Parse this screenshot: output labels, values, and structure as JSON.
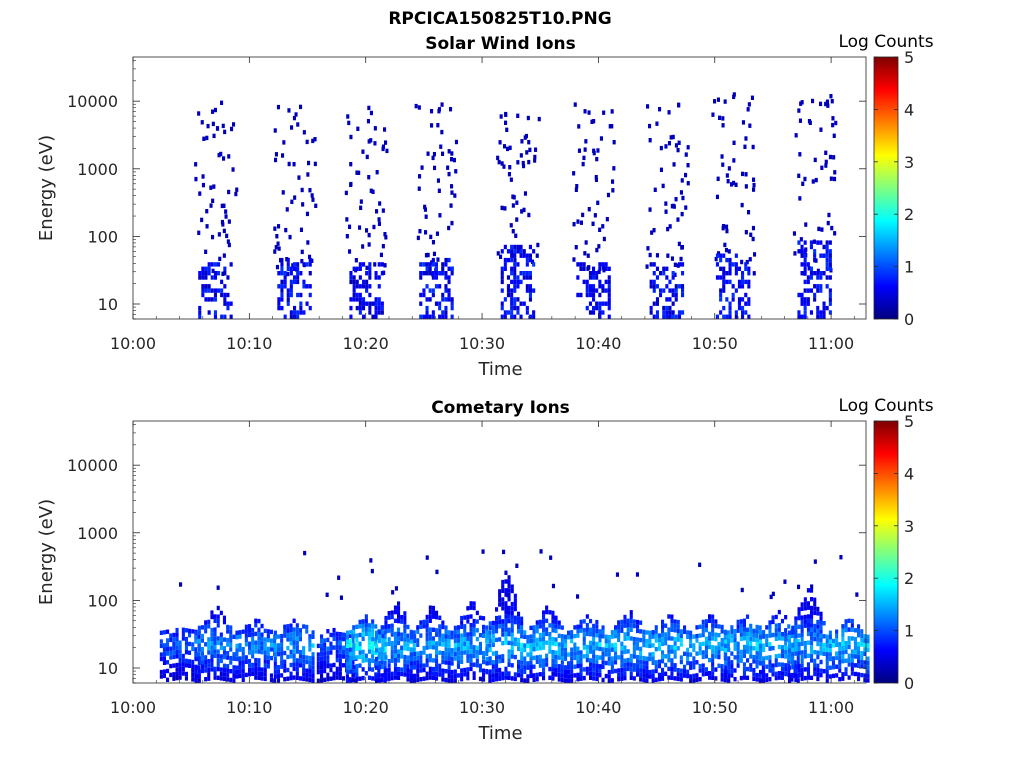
{
  "page": {
    "title": "RPCICA150825T10.PNG"
  },
  "colormap": [
    "#00007f",
    "#0000ff",
    "#007fff",
    "#00ffff",
    "#7fff7f",
    "#ffff00",
    "#ff7f00",
    "#ff0000",
    "#7f0000"
  ],
  "chart_data": [
    {
      "type": "heatmap",
      "title": "Solar Wind Ions",
      "xlabel": "Time",
      "ylabel": "Energy (eV)",
      "xlim": [
        "10:00",
        "11:03"
      ],
      "xticks": [
        "10:00",
        "10:10",
        "10:20",
        "10:30",
        "10:40",
        "10:50",
        "11:00"
      ],
      "y_scale": "log",
      "ylim": [
        6,
        45000
      ],
      "yticks": [
        "10",
        "100",
        "1000",
        "10000"
      ],
      "colorbar": {
        "label": "Log Counts",
        "range": [
          0,
          5
        ],
        "ticks": [
          "0",
          "1",
          "2",
          "3",
          "4",
          "5"
        ]
      },
      "grid": false,
      "bursts": [
        {
          "t": 7.0,
          "hi": 9000,
          "low_count": 1.0,
          "low_top": 40
        },
        {
          "t": 13.8,
          "hi": 8500,
          "low_count": 1.0,
          "low_top": 45
        },
        {
          "t": 20.0,
          "hi": 9000,
          "low_count": 0.9,
          "low_top": 40
        },
        {
          "t": 26.0,
          "hi": 12000,
          "low_count": 1.0,
          "low_top": 45
        },
        {
          "t": 33.0,
          "hi": 6000,
          "low_count": 1.0,
          "low_top": 70
        },
        {
          "t": 39.5,
          "hi": 9000,
          "low_count": 0.9,
          "low_top": 40
        },
        {
          "t": 45.8,
          "hi": 9000,
          "low_count": 1.0,
          "low_top": 40
        },
        {
          "t": 51.5,
          "hi": 12000,
          "low_count": 1.0,
          "low_top": 50
        },
        {
          "t": 58.5,
          "hi": 11000,
          "low_count": 1.0,
          "low_top": 80
        }
      ]
    },
    {
      "type": "heatmap",
      "title": "Cometary Ions",
      "xlabel": "Time",
      "ylabel": "Energy (eV)",
      "xlim": [
        "10:00",
        "11:03"
      ],
      "xticks": [
        "10:00",
        "10:10",
        "10:20",
        "10:30",
        "10:40",
        "10:50",
        "11:00"
      ],
      "y_scale": "log",
      "ylim": [
        6,
        45000
      ],
      "yticks": [
        "10",
        "100",
        "1000",
        "10000"
      ],
      "colorbar": {
        "label": "Log Counts",
        "range": [
          0,
          5
        ],
        "ticks": [
          "0",
          "1",
          "2",
          "3",
          "4",
          "5"
        ]
      },
      "grid": false,
      "bursts": [
        {
          "t": 4.0,
          "hi": 40,
          "intensity": 1.3
        },
        {
          "t": 7.0,
          "hi": 80,
          "intensity": 1.6
        },
        {
          "t": 10.5,
          "hi": 50,
          "intensity": 1.6
        },
        {
          "t": 13.8,
          "hi": 50,
          "intensity": 1.7
        },
        {
          "t": 17.5,
          "hi": 40,
          "intensity": 1.3
        },
        {
          "t": 20.0,
          "hi": 60,
          "intensity": 2.2
        },
        {
          "t": 22.5,
          "hi": 100,
          "intensity": 1.8
        },
        {
          "t": 25.5,
          "hi": 80,
          "intensity": 1.7
        },
        {
          "t": 29.0,
          "hi": 100,
          "intensity": 1.8
        },
        {
          "t": 32.0,
          "hi": 280,
          "intensity": 1.9
        },
        {
          "t": 35.5,
          "hi": 80,
          "intensity": 1.9
        },
        {
          "t": 39.0,
          "hi": 60,
          "intensity": 1.9
        },
        {
          "t": 42.5,
          "hi": 70,
          "intensity": 1.9
        },
        {
          "t": 46.0,
          "hi": 60,
          "intensity": 1.9
        },
        {
          "t": 49.5,
          "hi": 60,
          "intensity": 1.8
        },
        {
          "t": 52.5,
          "hi": 60,
          "intensity": 1.9
        },
        {
          "t": 55.5,
          "hi": 70,
          "intensity": 1.9
        },
        {
          "t": 58.0,
          "hi": 160,
          "intensity": 1.8
        },
        {
          "t": 61.5,
          "hi": 50,
          "intensity": 1.9
        }
      ]
    }
  ]
}
